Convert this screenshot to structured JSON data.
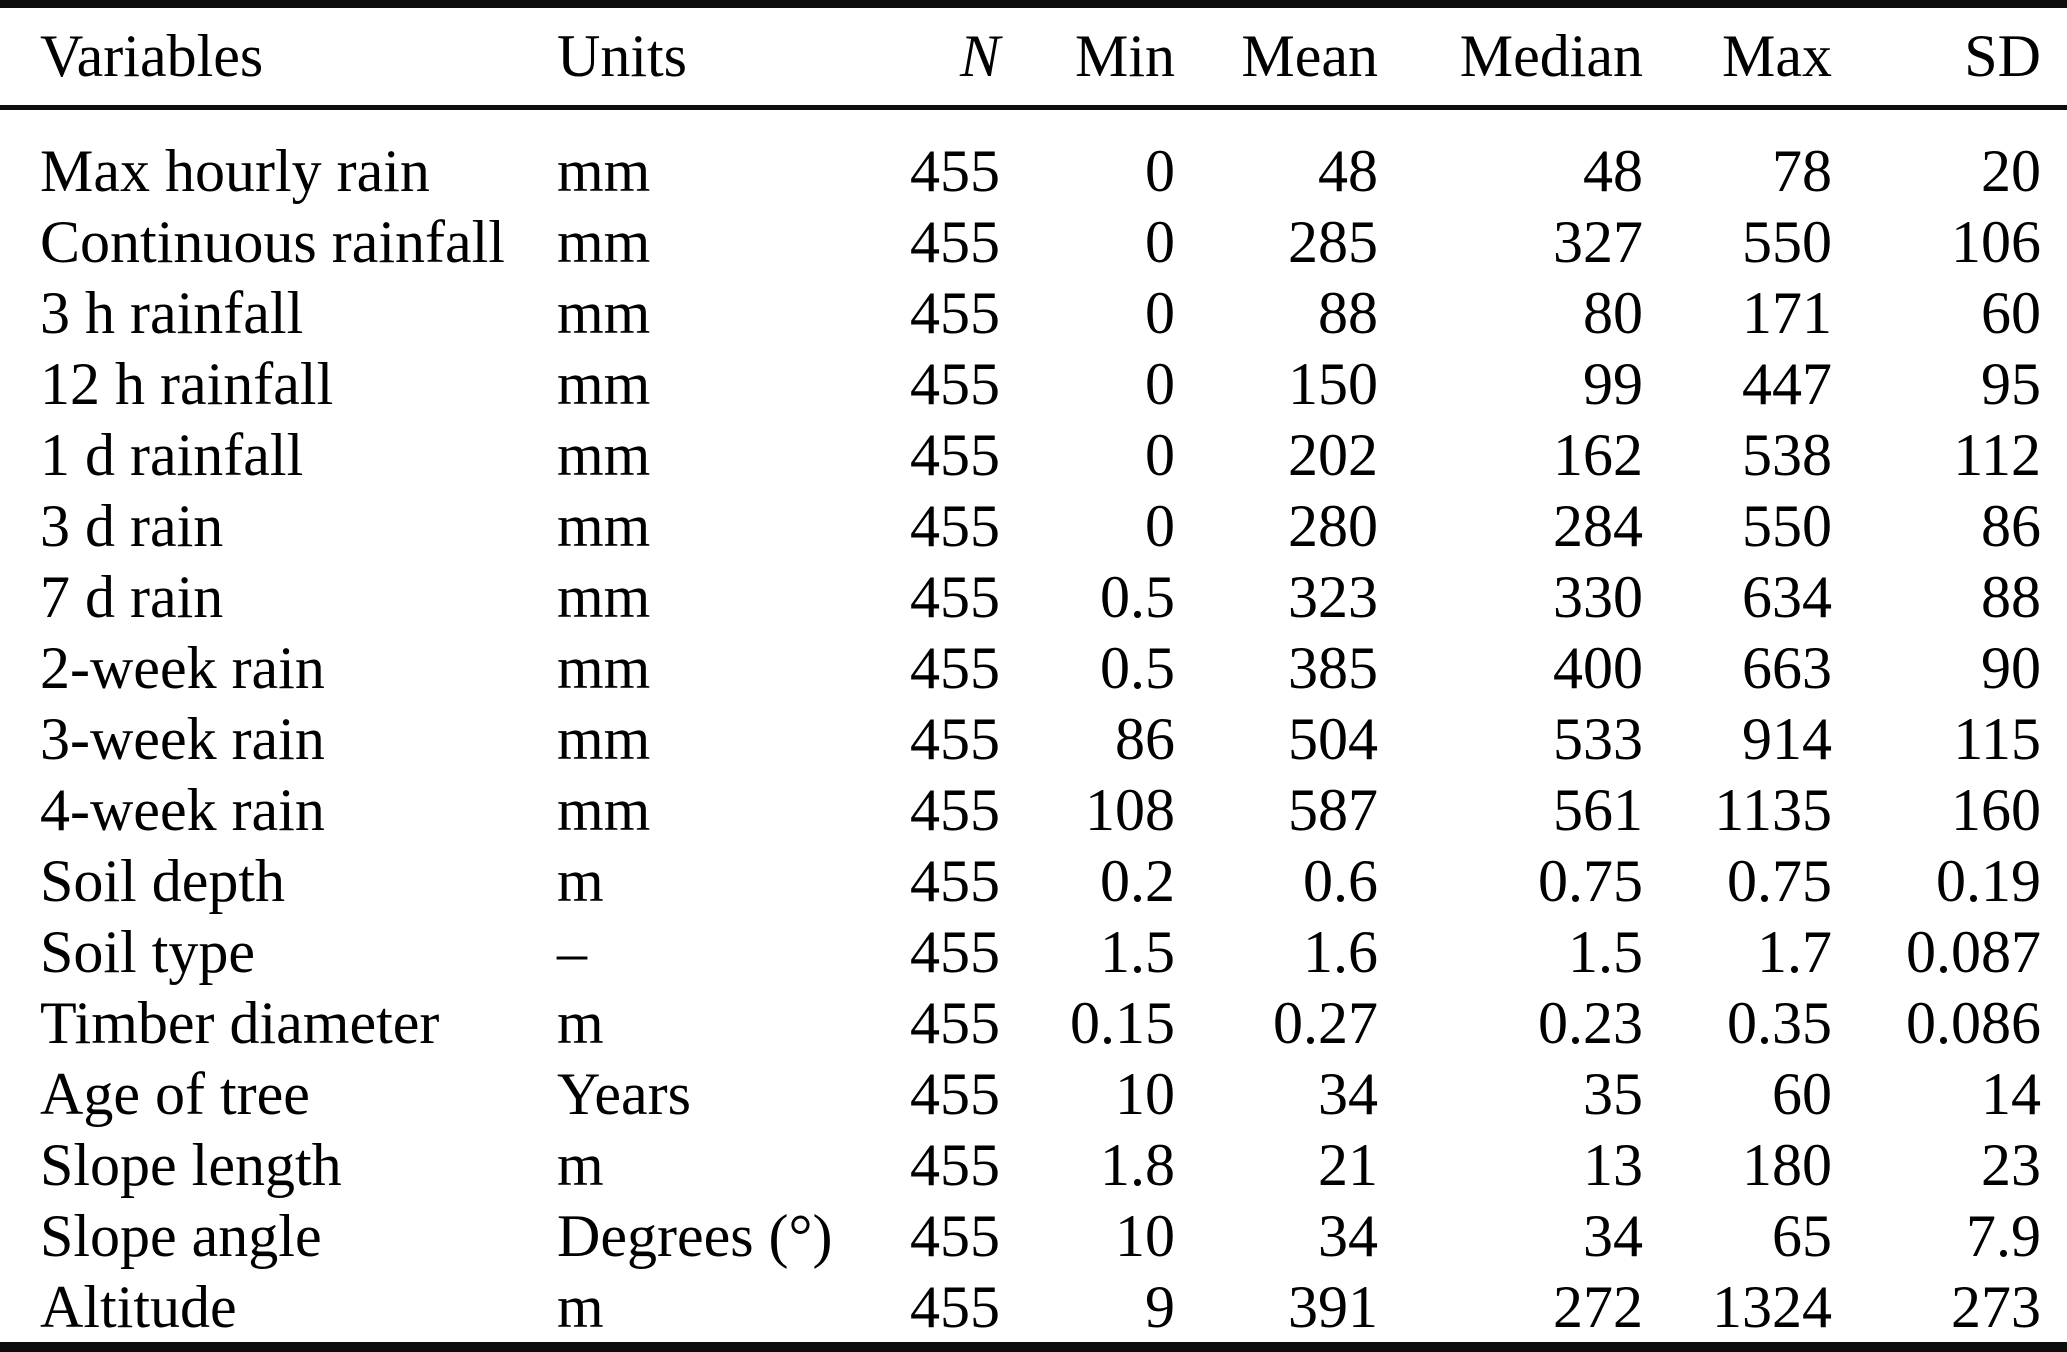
{
  "table": {
    "columns": [
      {
        "key": "variable",
        "label": "Variables"
      },
      {
        "key": "unit",
        "label": "Units"
      },
      {
        "key": "n",
        "label": "N"
      },
      {
        "key": "min",
        "label": "Min"
      },
      {
        "key": "mean",
        "label": "Mean"
      },
      {
        "key": "median",
        "label": "Median"
      },
      {
        "key": "max",
        "label": "Max"
      },
      {
        "key": "sd",
        "label": "SD"
      }
    ],
    "rows": [
      {
        "variable": "Max hourly rain",
        "unit": "mm",
        "n": "455",
        "min": "0",
        "mean": "48",
        "median": "48",
        "max": "78",
        "sd": "20"
      },
      {
        "variable": "Continuous rainfall",
        "unit": "mm",
        "n": "455",
        "min": "0",
        "mean": "285",
        "median": "327",
        "max": "550",
        "sd": "106"
      },
      {
        "variable": "3 h rainfall",
        "unit": "mm",
        "n": "455",
        "min": "0",
        "mean": "88",
        "median": "80",
        "max": "171",
        "sd": "60"
      },
      {
        "variable": "12 h rainfall",
        "unit": "mm",
        "n": "455",
        "min": "0",
        "mean": "150",
        "median": "99",
        "max": "447",
        "sd": "95"
      },
      {
        "variable": "1 d rainfall",
        "unit": "mm",
        "n": "455",
        "min": "0",
        "mean": "202",
        "median": "162",
        "max": "538",
        "sd": "112"
      },
      {
        "variable": "3 d rain",
        "unit": "mm",
        "n": "455",
        "min": "0",
        "mean": "280",
        "median": "284",
        "max": "550",
        "sd": "86"
      },
      {
        "variable": "7 d rain",
        "unit": "mm",
        "n": "455",
        "min": "0.5",
        "mean": "323",
        "median": "330",
        "max": "634",
        "sd": "88"
      },
      {
        "variable": "2-week rain",
        "unit": "mm",
        "n": "455",
        "min": "0.5",
        "mean": "385",
        "median": "400",
        "max": "663",
        "sd": "90"
      },
      {
        "variable": "3-week rain",
        "unit": "mm",
        "n": "455",
        "min": "86",
        "mean": "504",
        "median": "533",
        "max": "914",
        "sd": "115"
      },
      {
        "variable": "4-week rain",
        "unit": "mm",
        "n": "455",
        "min": "108",
        "mean": "587",
        "median": "561",
        "max": "1135",
        "sd": "160"
      },
      {
        "variable": "Soil depth",
        "unit": "m",
        "n": "455",
        "min": "0.2",
        "mean": "0.6",
        "median": "0.75",
        "max": "0.75",
        "sd": "0.19"
      },
      {
        "variable": "Soil type",
        "unit": "–",
        "n": "455",
        "min": "1.5",
        "mean": "1.6",
        "median": "1.5",
        "max": "1.7",
        "sd": "0.087"
      },
      {
        "variable": "Timber diameter",
        "unit": "m",
        "n": "455",
        "min": "0.15",
        "mean": "0.27",
        "median": "0.23",
        "max": "0.35",
        "sd": "0.086"
      },
      {
        "variable": "Age of tree",
        "unit": "Years",
        "n": "455",
        "min": "10",
        "mean": "34",
        "median": "35",
        "max": "60",
        "sd": "14"
      },
      {
        "variable": "Slope length",
        "unit": "m",
        "n": "455",
        "min": "1.8",
        "mean": "21",
        "median": "13",
        "max": "180",
        "sd": "23"
      },
      {
        "variable": "Slope angle",
        "unit": "Degrees (°)",
        "n": "455",
        "min": "10",
        "mean": "34",
        "median": "34",
        "max": "65",
        "sd": "7.9"
      },
      {
        "variable": "Altitude",
        "unit": "m",
        "n": "455",
        "min": "9",
        "mean": "391",
        "median": "272",
        "max": "1324",
        "sd": "273"
      }
    ]
  }
}
